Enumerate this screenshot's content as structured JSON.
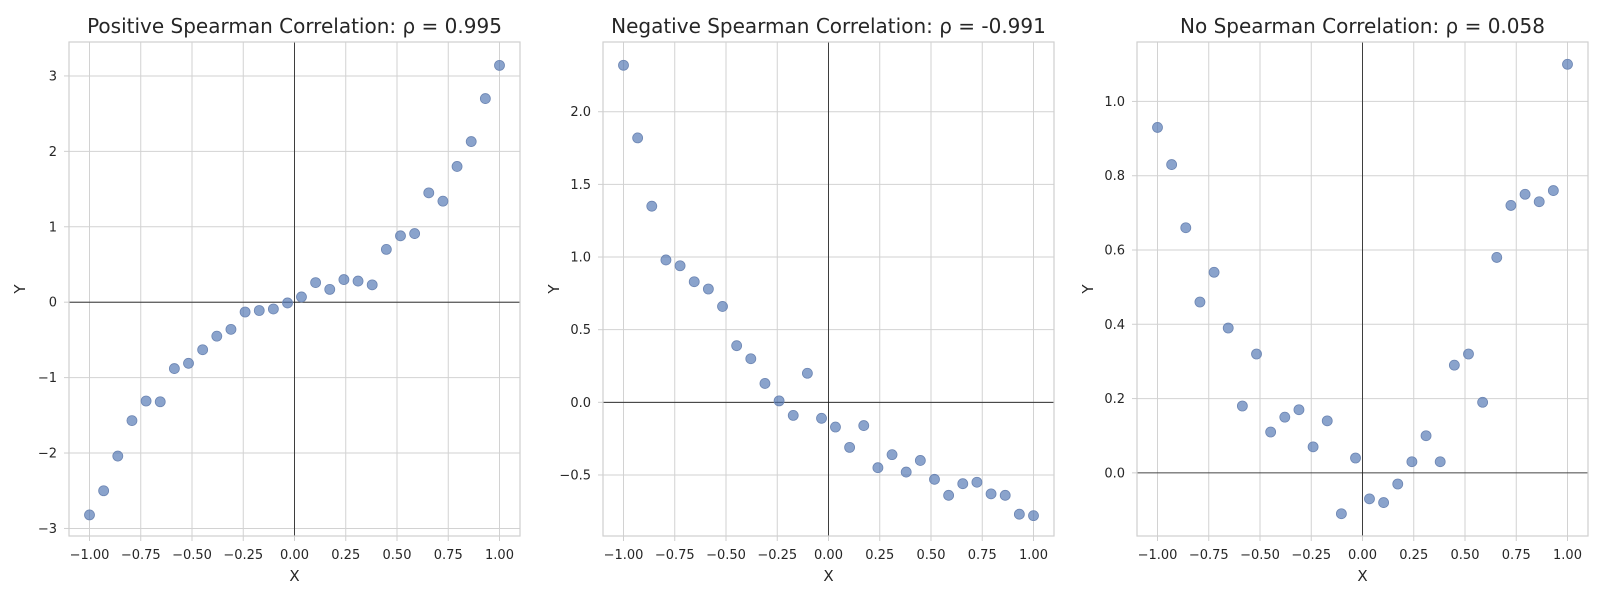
{
  "colors": {
    "point": "#4c72b0",
    "grid": "#d2d2d2",
    "zero_line": "#1a1a1a",
    "text": "#262626"
  },
  "chart_data": [
    {
      "type": "scatter",
      "title": "Positive Spearman Correlation: ρ = 0.995",
      "xlabel": "X",
      "ylabel": "Y",
      "xlim": [
        -1.1,
        1.1
      ],
      "ylim": [
        -3.1,
        3.45
      ],
      "xticks": [
        -1.0,
        -0.75,
        -0.5,
        -0.25,
        0.0,
        0.25,
        0.5,
        0.75,
        1.0
      ],
      "xtick_labels": [
        "−1.00",
        "−0.75",
        "−0.50",
        "−0.25",
        "0.00",
        "0.25",
        "0.50",
        "0.75",
        "1.00"
      ],
      "yticks": [
        -3,
        -2,
        -1,
        0,
        1,
        2,
        3
      ],
      "ytick_labels": [
        "−3",
        "−2",
        "−1",
        "0",
        "1",
        "2",
        "3"
      ],
      "grid": true,
      "zero_lines": true,
      "points": [
        {
          "x": -1.0,
          "y": -2.82
        },
        {
          "x": -0.931,
          "y": -2.5
        },
        {
          "x": -0.862,
          "y": -2.04
        },
        {
          "x": -0.793,
          "y": -1.57
        },
        {
          "x": -0.724,
          "y": -1.31
        },
        {
          "x": -0.655,
          "y": -1.32
        },
        {
          "x": -0.586,
          "y": -0.88
        },
        {
          "x": -0.517,
          "y": -0.81
        },
        {
          "x": -0.448,
          "y": -0.63
        },
        {
          "x": -0.379,
          "y": -0.45
        },
        {
          "x": -0.31,
          "y": -0.36
        },
        {
          "x": -0.241,
          "y": -0.13
        },
        {
          "x": -0.172,
          "y": -0.11
        },
        {
          "x": -0.103,
          "y": -0.09
        },
        {
          "x": -0.034,
          "y": -0.01
        },
        {
          "x": 0.034,
          "y": 0.07
        },
        {
          "x": 0.103,
          "y": 0.26
        },
        {
          "x": 0.172,
          "y": 0.17
        },
        {
          "x": 0.241,
          "y": 0.3
        },
        {
          "x": 0.31,
          "y": 0.28
        },
        {
          "x": 0.379,
          "y": 0.23
        },
        {
          "x": 0.448,
          "y": 0.7
        },
        {
          "x": 0.517,
          "y": 0.88
        },
        {
          "x": 0.586,
          "y": 0.91
        },
        {
          "x": 0.655,
          "y": 1.45
        },
        {
          "x": 0.724,
          "y": 1.34
        },
        {
          "x": 0.793,
          "y": 1.8
        },
        {
          "x": 0.862,
          "y": 2.13
        },
        {
          "x": 0.931,
          "y": 2.7
        },
        {
          "x": 1.0,
          "y": 3.14
        }
      ]
    },
    {
      "type": "scatter",
      "title": "Negative Spearman Correlation: ρ = -0.991",
      "xlabel": "X",
      "ylabel": "Y",
      "xlim": [
        -1.1,
        1.1
      ],
      "ylim": [
        -0.92,
        2.48
      ],
      "xticks": [
        -1.0,
        -0.75,
        -0.5,
        -0.25,
        0.0,
        0.25,
        0.5,
        0.75,
        1.0
      ],
      "xtick_labels": [
        "−1.00",
        "−0.75",
        "−0.50",
        "−0.25",
        "0.00",
        "0.25",
        "0.50",
        "0.75",
        "1.00"
      ],
      "yticks": [
        -0.5,
        0.0,
        0.5,
        1.0,
        1.5,
        2.0
      ],
      "ytick_labels": [
        "−0.5",
        "0.0",
        "0.5",
        "1.0",
        "1.5",
        "2.0"
      ],
      "grid": true,
      "zero_lines": true,
      "points": [
        {
          "x": -1.0,
          "y": 2.32
        },
        {
          "x": -0.931,
          "y": 1.82
        },
        {
          "x": -0.862,
          "y": 1.35
        },
        {
          "x": -0.793,
          "y": 0.98
        },
        {
          "x": -0.724,
          "y": 0.94
        },
        {
          "x": -0.655,
          "y": 0.83
        },
        {
          "x": -0.586,
          "y": 0.78
        },
        {
          "x": -0.517,
          "y": 0.66
        },
        {
          "x": -0.448,
          "y": 0.39
        },
        {
          "x": -0.379,
          "y": 0.3
        },
        {
          "x": -0.31,
          "y": 0.13
        },
        {
          "x": -0.241,
          "y": 0.01
        },
        {
          "x": -0.172,
          "y": -0.09
        },
        {
          "x": -0.103,
          "y": 0.2
        },
        {
          "x": -0.034,
          "y": -0.11
        },
        {
          "x": 0.034,
          "y": -0.17
        },
        {
          "x": 0.103,
          "y": -0.31
        },
        {
          "x": 0.172,
          "y": -0.16
        },
        {
          "x": 0.241,
          "y": -0.45
        },
        {
          "x": 0.31,
          "y": -0.36
        },
        {
          "x": 0.379,
          "y": -0.48
        },
        {
          "x": 0.448,
          "y": -0.4
        },
        {
          "x": 0.517,
          "y": -0.53
        },
        {
          "x": 0.586,
          "y": -0.64
        },
        {
          "x": 0.655,
          "y": -0.56
        },
        {
          "x": 0.724,
          "y": -0.55
        },
        {
          "x": 0.793,
          "y": -0.63
        },
        {
          "x": 0.862,
          "y": -0.64
        },
        {
          "x": 0.931,
          "y": -0.77
        },
        {
          "x": 1.0,
          "y": -0.78
        }
      ]
    },
    {
      "type": "scatter",
      "title": "No Spearman Correlation: ρ = 0.058",
      "xlabel": "X",
      "ylabel": "Y",
      "xlim": [
        -1.1,
        1.1
      ],
      "ylim": [
        -0.17,
        1.16
      ],
      "xticks": [
        -1.0,
        -0.75,
        -0.5,
        -0.25,
        0.0,
        0.25,
        0.5,
        0.75,
        1.0
      ],
      "xtick_labels": [
        "−1.00",
        "−0.75",
        "−0.50",
        "−0.25",
        "0.00",
        "0.25",
        "0.50",
        "0.75",
        "1.00"
      ],
      "yticks": [
        0.0,
        0.2,
        0.4,
        0.6,
        0.8,
        1.0
      ],
      "ytick_labels": [
        "0.0",
        "0.2",
        "0.4",
        "0.6",
        "0.8",
        "1.0"
      ],
      "grid": true,
      "zero_lines": true,
      "points": [
        {
          "x": -1.0,
          "y": 0.93
        },
        {
          "x": -0.931,
          "y": 0.83
        },
        {
          "x": -0.862,
          "y": 0.66
        },
        {
          "x": -0.793,
          "y": 0.46
        },
        {
          "x": -0.724,
          "y": 0.54
        },
        {
          "x": -0.655,
          "y": 0.39
        },
        {
          "x": -0.586,
          "y": 0.18
        },
        {
          "x": -0.517,
          "y": 0.32
        },
        {
          "x": -0.448,
          "y": 0.11
        },
        {
          "x": -0.379,
          "y": 0.15
        },
        {
          "x": -0.31,
          "y": 0.17
        },
        {
          "x": -0.241,
          "y": 0.07
        },
        {
          "x": -0.172,
          "y": 0.14
        },
        {
          "x": -0.103,
          "y": -0.11
        },
        {
          "x": -0.034,
          "y": 0.04
        },
        {
          "x": 0.034,
          "y": -0.07
        },
        {
          "x": 0.103,
          "y": -0.08
        },
        {
          "x": 0.172,
          "y": -0.03
        },
        {
          "x": 0.241,
          "y": 0.03
        },
        {
          "x": 0.31,
          "y": 0.1
        },
        {
          "x": 0.379,
          "y": 0.03
        },
        {
          "x": 0.448,
          "y": 0.29
        },
        {
          "x": 0.517,
          "y": 0.32
        },
        {
          "x": 0.586,
          "y": 0.19
        },
        {
          "x": 0.655,
          "y": 0.58
        },
        {
          "x": 0.724,
          "y": 0.72
        },
        {
          "x": 0.793,
          "y": 0.75
        },
        {
          "x": 0.862,
          "y": 0.73
        },
        {
          "x": 0.931,
          "y": 0.76
        },
        {
          "x": 1.0,
          "y": 1.1
        }
      ]
    }
  ]
}
